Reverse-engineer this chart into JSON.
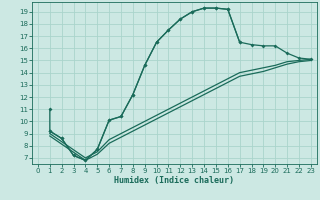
{
  "xlabel": "Humidex (Indice chaleur)",
  "bg_color": "#cce8e3",
  "grid_color": "#aad4cc",
  "line_color": "#1a6b5a",
  "xlim": [
    -0.5,
    23.5
  ],
  "ylim": [
    6.5,
    19.8
  ],
  "xticks": [
    0,
    1,
    2,
    3,
    4,
    5,
    6,
    7,
    8,
    9,
    10,
    11,
    12,
    13,
    14,
    15,
    16,
    17,
    18,
    19,
    20,
    21,
    22,
    23
  ],
  "yticks": [
    7,
    8,
    9,
    10,
    11,
    12,
    13,
    14,
    15,
    16,
    17,
    18,
    19
  ],
  "curve1_x": [
    1,
    1,
    2,
    3,
    4,
    5,
    6,
    7,
    8,
    9,
    10,
    11,
    12,
    13,
    14,
    15,
    16,
    17
  ],
  "curve1_y": [
    11,
    9.2,
    8.6,
    7.2,
    6.8,
    7.7,
    10.1,
    10.4,
    12.2,
    14.6,
    16.5,
    17.5,
    18.4,
    19.0,
    19.3,
    19.3,
    19.2,
    16.5
  ],
  "curve2_x": [
    1,
    2,
    3,
    4,
    5,
    6,
    7,
    8,
    9,
    10,
    11,
    12,
    13,
    14,
    15,
    16,
    17,
    18,
    19,
    20,
    21,
    22,
    23
  ],
  "curve2_y": [
    9.2,
    8.6,
    7.2,
    6.8,
    7.7,
    10.1,
    10.4,
    12.2,
    14.6,
    16.5,
    17.5,
    18.4,
    19.0,
    19.3,
    19.3,
    19.2,
    16.5,
    16.3,
    16.2,
    16.2,
    15.6,
    15.2,
    15.1
  ],
  "line3_x": [
    1,
    4,
    5,
    6,
    7,
    8,
    9,
    10,
    11,
    12,
    13,
    14,
    15,
    16,
    17,
    18,
    19,
    20,
    21,
    22,
    23
  ],
  "line3_y": [
    9.0,
    7.0,
    7.5,
    8.5,
    9.0,
    9.5,
    10.0,
    10.5,
    11.0,
    11.5,
    12.0,
    12.5,
    13.0,
    13.5,
    14.0,
    14.2,
    14.4,
    14.6,
    14.9,
    15.0,
    15.1
  ],
  "line4_x": [
    1,
    4,
    5,
    6,
    7,
    8,
    9,
    10,
    11,
    12,
    13,
    14,
    15,
    16,
    17,
    18,
    19,
    20,
    21,
    22,
    23
  ],
  "line4_y": [
    8.8,
    6.8,
    7.3,
    8.2,
    8.7,
    9.2,
    9.7,
    10.2,
    10.7,
    11.2,
    11.7,
    12.2,
    12.7,
    13.2,
    13.7,
    13.9,
    14.1,
    14.4,
    14.7,
    14.9,
    15.0
  ]
}
